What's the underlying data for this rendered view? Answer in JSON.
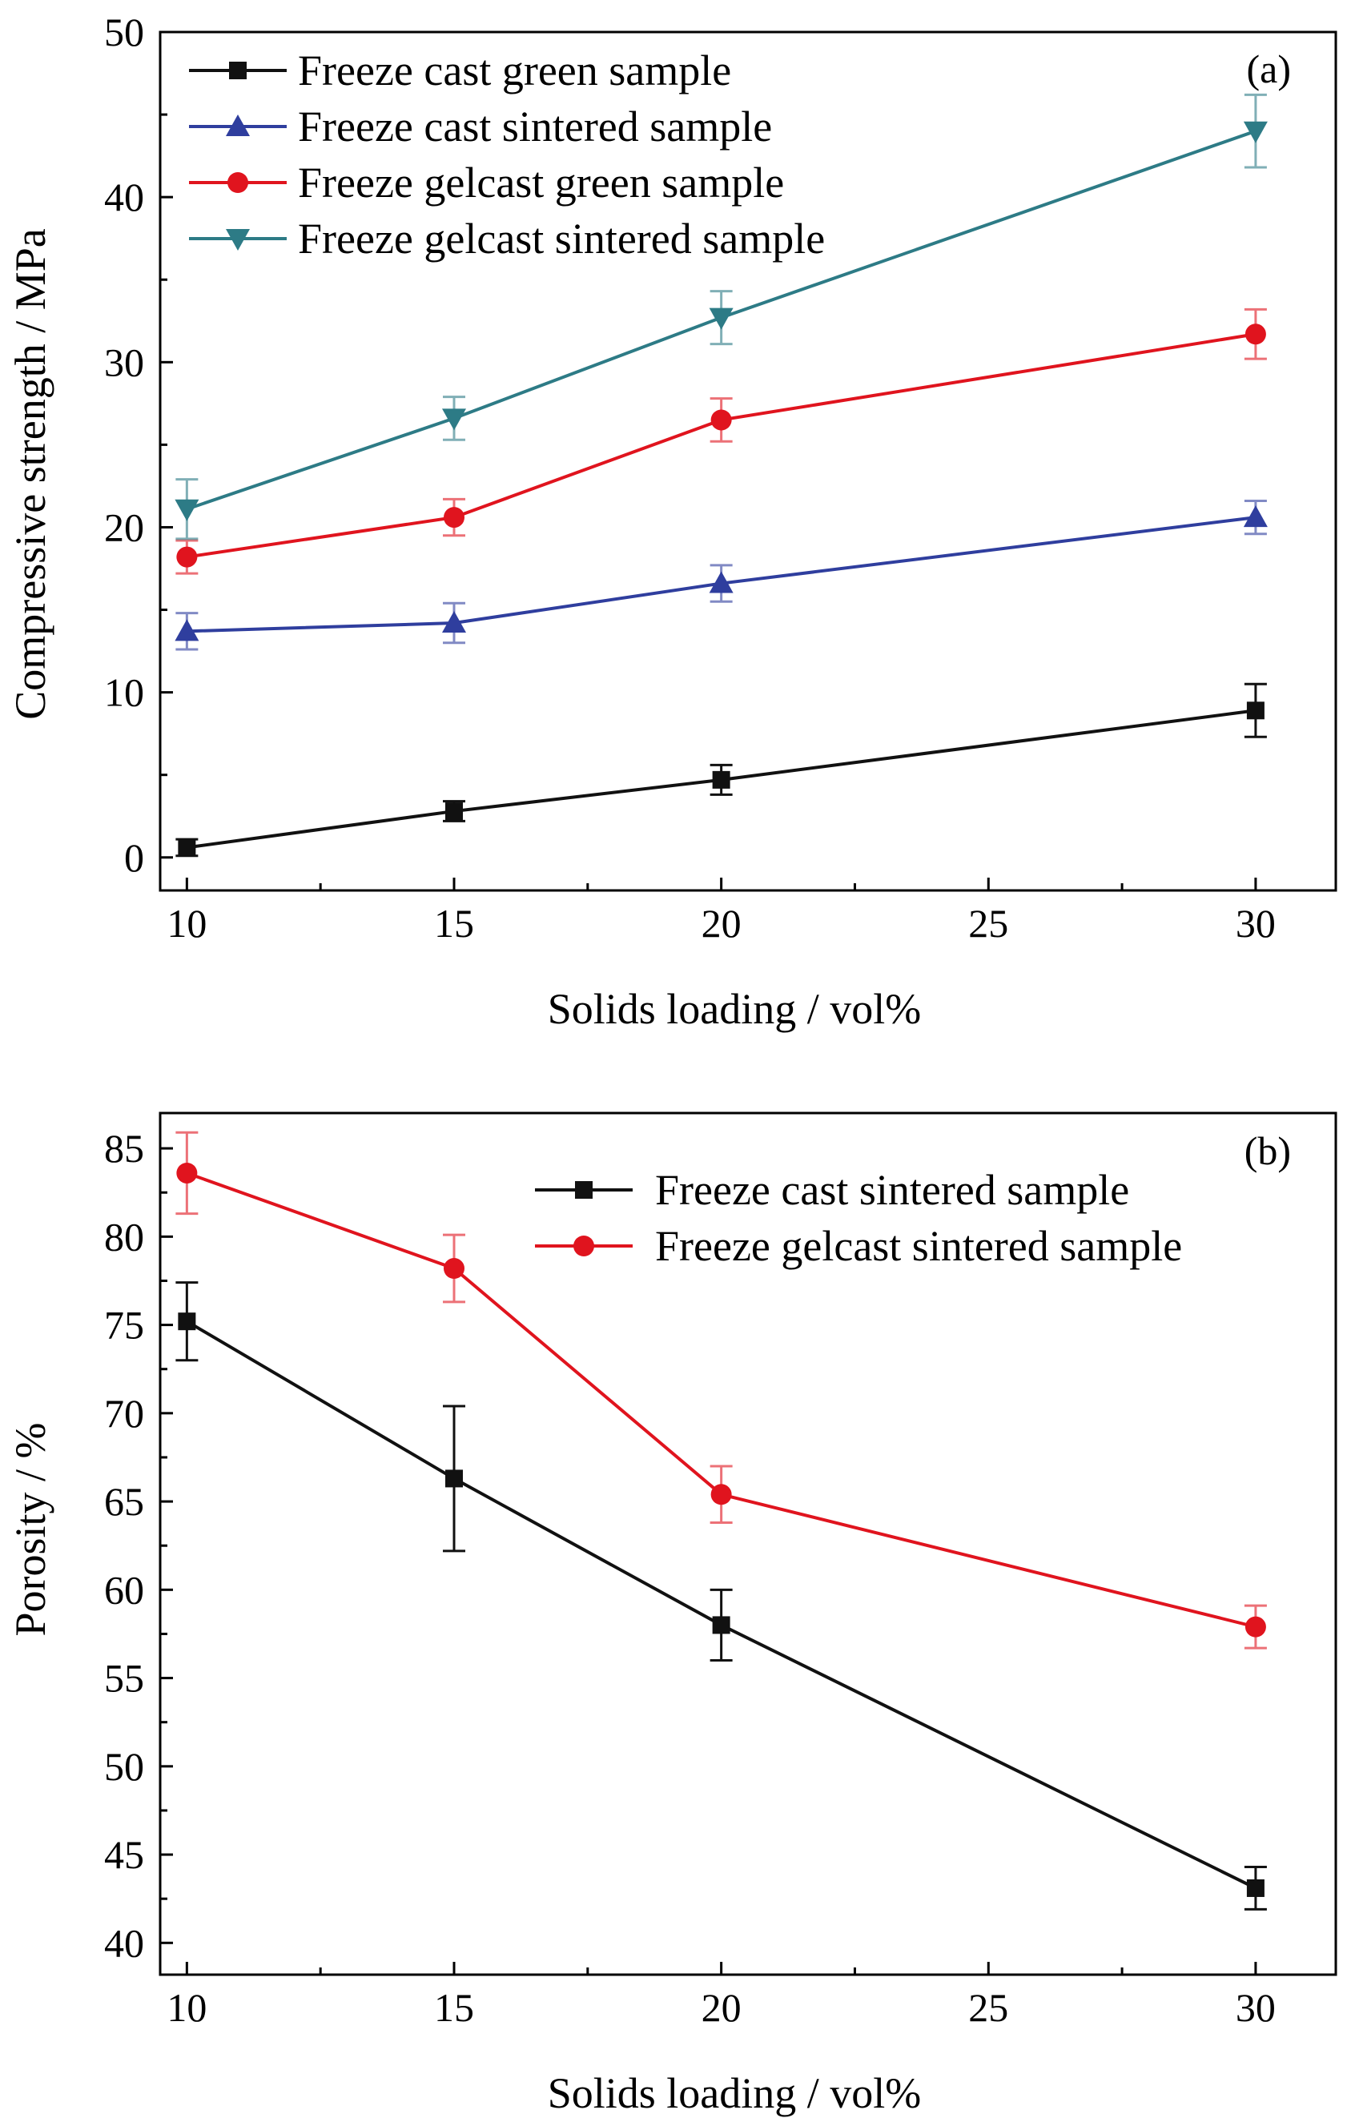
{
  "chart_data": [
    {
      "panel": "(a)",
      "type": "line",
      "xlabel": "Solids loading / vol%",
      "ylabel": "Compressive strength / MPa",
      "xlim": [
        9.5,
        31.5
      ],
      "ylim": [
        -2,
        50
      ],
      "xticks": [
        10,
        15,
        20,
        25,
        30
      ],
      "yticks": [
        0,
        10,
        20,
        30,
        40,
        50
      ],
      "legend_position": "top-left",
      "grid": false,
      "x": [
        10,
        15,
        20,
        30
      ],
      "series": [
        {
          "name": "Freeze cast green sample",
          "color": "#111111",
          "marker": "square",
          "values": [
            0.6,
            2.8,
            4.7,
            8.9
          ],
          "errors": [
            0.5,
            0.6,
            0.9,
            1.6
          ]
        },
        {
          "name": "Freeze cast sintered sample",
          "color": "#2f3e9e",
          "marker": "triangle-up",
          "values": [
            13.7,
            14.2,
            16.6,
            20.6
          ],
          "errors": [
            1.1,
            1.2,
            1.1,
            1.0
          ]
        },
        {
          "name": "Freeze gelcast green sample",
          "color": "#e0141e",
          "marker": "circle",
          "values": [
            18.2,
            20.6,
            26.5,
            31.7
          ],
          "errors": [
            1.0,
            1.1,
            1.3,
            1.5
          ]
        },
        {
          "name": "Freeze gelcast sintered sample",
          "color": "#2d7b86",
          "marker": "triangle-down",
          "values": [
            21.1,
            26.6,
            32.7,
            44.0
          ],
          "errors": [
            1.8,
            1.3,
            1.6,
            2.2
          ]
        }
      ]
    },
    {
      "panel": "(b)",
      "type": "line",
      "xlabel": "Solids loading / vol%",
      "ylabel": "Porosity / %",
      "xlim": [
        9.5,
        31.5
      ],
      "ylim": [
        38.2,
        87
      ],
      "xticks": [
        10,
        15,
        20,
        25,
        30
      ],
      "yticks": [
        40,
        45,
        50,
        55,
        60,
        65,
        70,
        75,
        80,
        85
      ],
      "legend_position": "top-right",
      "grid": false,
      "x": [
        10,
        15,
        20,
        30
      ],
      "series": [
        {
          "name": "Freeze cast sintered sample",
          "color": "#111111",
          "marker": "square",
          "values": [
            75.2,
            66.3,
            58.0,
            43.1
          ],
          "errors": [
            2.2,
            4.1,
            2.0,
            1.2
          ]
        },
        {
          "name": "Freeze gelcast sintered sample",
          "color": "#e0141e",
          "marker": "circle",
          "values": [
            83.6,
            78.2,
            65.4,
            57.9
          ],
          "errors": [
            2.3,
            1.9,
            1.6,
            1.2
          ]
        }
      ]
    }
  ]
}
